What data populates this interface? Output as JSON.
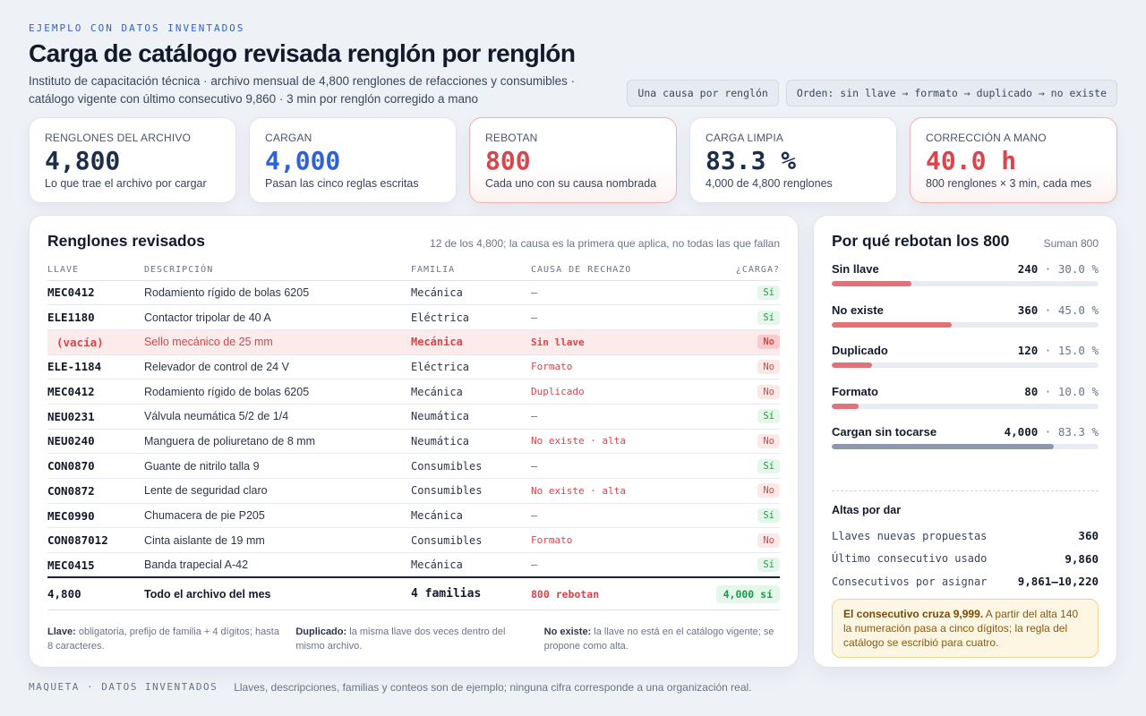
{
  "eyebrow": "EJEMPLO CON DATOS INVENTADOS",
  "title": "Carga de catálogo revisada renglón por renglón",
  "subtitle": "Instituto de capacitación técnica · archivo mensual de 4,800 renglones de refacciones y consumibles · catálogo vigente con último consecutivo 9,860 · 3 min por renglón corregido a mano",
  "chips": [
    "Una causa por renglón",
    "Orden: sin llave → formato → duplicado → no existe"
  ],
  "kpis": [
    {
      "label": "RENGLONES DEL ARCHIVO",
      "value": "4,800",
      "sub": "Lo que trae el archivo por cargar",
      "color": "#1c2e4a"
    },
    {
      "label": "CARGAN",
      "value": "4,000",
      "sub": "Pasan las cinco reglas escritas",
      "color": "#2f62d6"
    },
    {
      "label": "REBOTAN",
      "value": "800",
      "sub": "Cada uno con su causa nombrada",
      "color": "#d8454a"
    },
    {
      "label": "CARGA LIMPIA",
      "value": "83.3 %",
      "sub": "4,000 de 4,800 renglones",
      "color": "#1c2e4a"
    },
    {
      "label": "CORRECCIÓN A MANO",
      "value": "40.0 h",
      "sub": "800 renglones × 3 min, cada mes",
      "color": "#d8454a"
    }
  ],
  "table": {
    "title": "Renglones revisados",
    "note": "12 de los 4,800; la causa es la primera que aplica, no todas las que fallan",
    "headers": [
      "LLAVE",
      "DESCRIPCIÓN",
      "FAMILIA",
      "CAUSA DE RECHAZO",
      "¿CARGA?"
    ],
    "rows": [
      {
        "key": "MEC0412",
        "desc": "Rodamiento rígido de bolas 6205",
        "fam": "Mecánica",
        "cause": "—",
        "carga": "Sí"
      },
      {
        "key": "ELE1180",
        "desc": "Contactor tripolar de 40 A",
        "fam": "Eléctrica",
        "cause": "—",
        "carga": "Sí"
      },
      {
        "key": "(vacía)",
        "desc": "Sello mecánico de 25 mm",
        "fam": "Mecánica",
        "cause": "Sin llave",
        "carga": "No"
      },
      {
        "key": "ELE-1184",
        "desc": "Relevador de control de 24 V",
        "fam": "Eléctrica",
        "cause": "Formato",
        "carga": "No"
      },
      {
        "key": "MEC0412",
        "desc": "Rodamiento rígido de bolas 6205",
        "fam": "Mecánica",
        "cause": "Duplicado",
        "carga": "No"
      },
      {
        "key": "NEU0231",
        "desc": "Válvula neumática 5/2 de 1/4",
        "fam": "Neumática",
        "cause": "—",
        "carga": "Sí"
      },
      {
        "key": "NEU0240",
        "desc": "Manguera de poliuretano de 8 mm",
        "fam": "Neumática",
        "cause": "No existe · alta",
        "carga": "No"
      },
      {
        "key": "CON0870",
        "desc": "Guante de nitrilo talla 9",
        "fam": "Consumibles",
        "cause": "—",
        "carga": "Sí"
      },
      {
        "key": "CON0872",
        "desc": "Lente de seguridad claro",
        "fam": "Consumibles",
        "cause": "No existe · alta",
        "carga": "No"
      },
      {
        "key": "MEC0990",
        "desc": "Chumacera de pie P205",
        "fam": "Mecánica",
        "cause": "—",
        "carga": "Sí"
      },
      {
        "key": "CON087012",
        "desc": "Cinta aislante de 19 mm",
        "fam": "Consumibles",
        "cause": "Formato",
        "carga": "No"
      },
      {
        "key": "MEC0415",
        "desc": "Banda trapecial A-42",
        "fam": "Mecánica",
        "cause": "—",
        "carga": "Sí"
      }
    ],
    "total": {
      "key": "4,800",
      "desc": "Todo el archivo del mes",
      "fam": "4 familias",
      "cause": "800 rebotan",
      "carga": "4,000 sí"
    }
  },
  "legend": [
    {
      "term": "Llave:",
      "text": " obligatoria, prefijo de familia + 4 dígitos; hasta 8 caracteres."
    },
    {
      "term": "Duplicado:",
      "text": " la misma llave dos veces dentro del mismo archivo."
    },
    {
      "term": "No existe:",
      "text": " la llave no está en el catálogo vigente; se propone como alta."
    }
  ],
  "reasons": {
    "title": "Por qué rebotan los 800",
    "total": "Suman 800",
    "items": [
      {
        "label": "Sin llave",
        "count": "240",
        "pct": "30.0 %",
        "frac": 0.3
      },
      {
        "label": "No existe",
        "count": "360",
        "pct": "45.0 %",
        "frac": 0.45
      },
      {
        "label": "Duplicado",
        "count": "120",
        "pct": "15.0 %",
        "frac": 0.15
      },
      {
        "label": "Formato",
        "count": "80",
        "pct": "10.0 %",
        "frac": 0.1
      },
      {
        "label": "Cargan sin tocarse",
        "count": "4,000",
        "pct": "83.3 %",
        "frac": 0.833
      }
    ]
  },
  "altas": {
    "title": "Altas por dar",
    "rows": [
      {
        "label": "Llaves nuevas propuestas",
        "value": "360"
      },
      {
        "label": "Último consecutivo usado",
        "value": "9,860"
      },
      {
        "label": "Consecutivos por asignar",
        "value": "9,861–10,220"
      }
    ],
    "warn_strong": "El consecutivo cruza 9,999.",
    "warn_text": " A partir del alta 140 la numeración pasa a cinco dígitos; la regla del catálogo se escribió para cuatro."
  },
  "footer": {
    "tag": "MAQUETA · DATOS INVENTADOS",
    "text": "Llaves, descripciones, familias y conteos son de ejemplo; ninguna cifra corresponde a una organización real."
  }
}
